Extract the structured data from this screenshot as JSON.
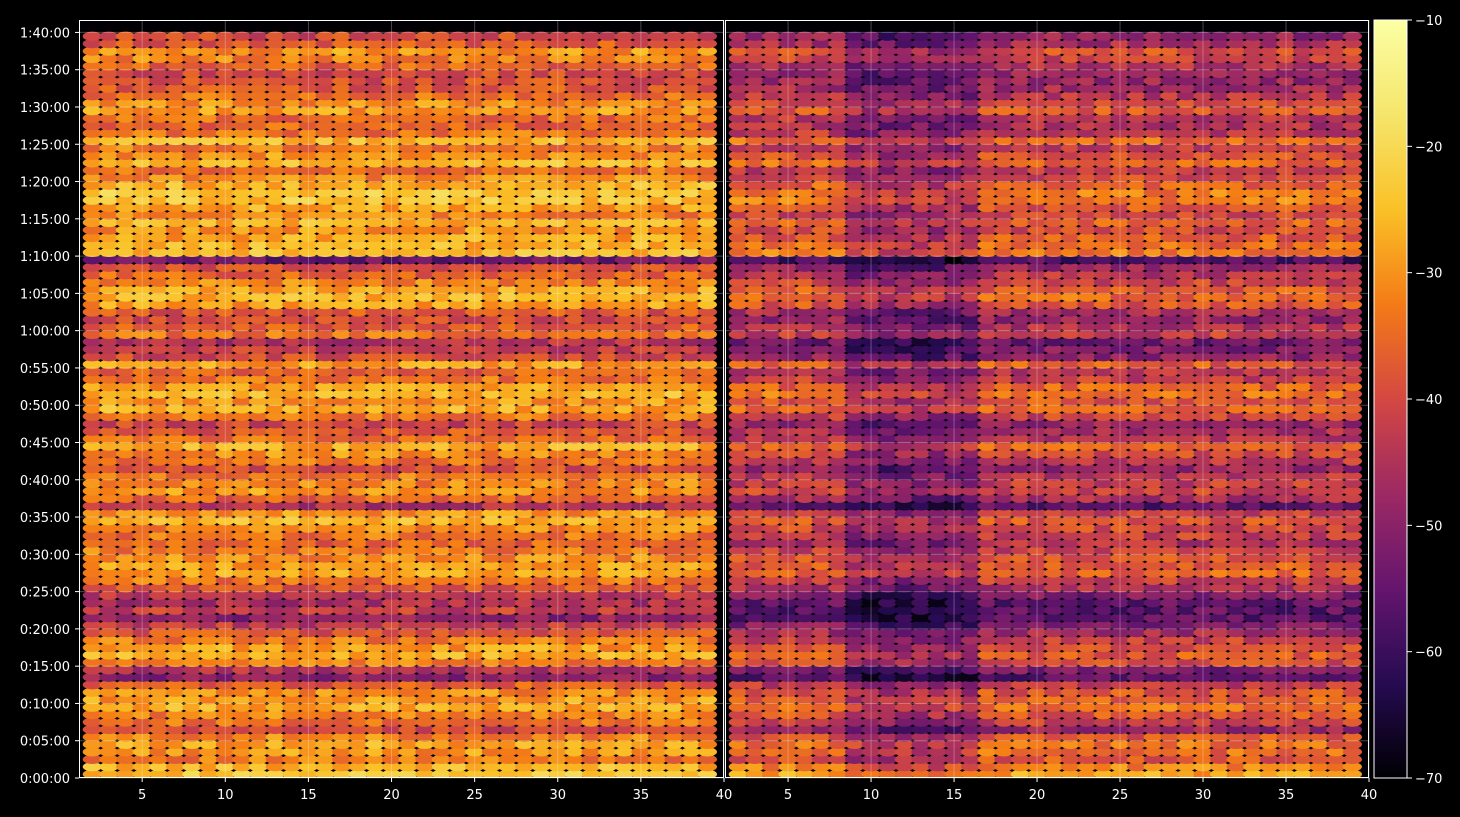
{
  "chart_data": {
    "type": "heatmap",
    "title": "",
    "xlabel": "",
    "ylabel": "",
    "grid": true,
    "ylim_seconds": [
      0,
      6100
    ],
    "y_ticks": [
      {
        "value": 0,
        "label": "0:00:00"
      },
      {
        "value": 300,
        "label": "0:05:00"
      },
      {
        "value": 600,
        "label": "0:10:00"
      },
      {
        "value": 900,
        "label": "0:15:00"
      },
      {
        "value": 1200,
        "label": "0:20:00"
      },
      {
        "value": 1500,
        "label": "0:25:00"
      },
      {
        "value": 1800,
        "label": "0:30:00"
      },
      {
        "value": 2100,
        "label": "0:35:00"
      },
      {
        "value": 2400,
        "label": "0:40:00"
      },
      {
        "value": 2700,
        "label": "0:45:00"
      },
      {
        "value": 3000,
        "label": "0:50:00"
      },
      {
        "value": 3300,
        "label": "0:55:00"
      },
      {
        "value": 3600,
        "label": "1:00:00"
      },
      {
        "value": 3900,
        "label": "1:05:00"
      },
      {
        "value": 4200,
        "label": "1:10:00"
      },
      {
        "value": 4500,
        "label": "1:15:00"
      },
      {
        "value": 4800,
        "label": "1:20:00"
      },
      {
        "value": 5100,
        "label": "1:25:00"
      },
      {
        "value": 5400,
        "label": "1:30:00"
      },
      {
        "value": 5700,
        "label": "1:35:00"
      },
      {
        "value": 6000,
        "label": "1:40:00"
      }
    ],
    "panels": [
      {
        "name": "left",
        "xlim": [
          1.2,
          40
        ],
        "x_ticks": [
          {
            "value": 5,
            "label": "5"
          },
          {
            "value": 10,
            "label": "10"
          },
          {
            "value": 15,
            "label": "15"
          },
          {
            "value": 20,
            "label": "20"
          },
          {
            "value": 25,
            "label": "25"
          },
          {
            "value": 30,
            "label": "30"
          },
          {
            "value": 35,
            "label": "35"
          },
          {
            "value": 40,
            "label": "40"
          }
        ]
      },
      {
        "name": "right",
        "xlim": [
          1.2,
          40
        ],
        "x_ticks": [
          {
            "value": 5,
            "label": "5"
          },
          {
            "value": 10,
            "label": "10"
          },
          {
            "value": 15,
            "label": "15"
          },
          {
            "value": 20,
            "label": "20"
          },
          {
            "value": 25,
            "label": "25"
          },
          {
            "value": 30,
            "label": "30"
          },
          {
            "value": 35,
            "label": "35"
          },
          {
            "value": 40,
            "label": "40"
          }
        ]
      }
    ],
    "colorbar": {
      "colormap": "inferno",
      "range": [
        -70,
        -10
      ],
      "ticks": [
        {
          "value": -10,
          "label": "−10"
        },
        {
          "value": -20,
          "label": "−20"
        },
        {
          "value": -30,
          "label": "−30"
        },
        {
          "value": -40,
          "label": "−40"
        },
        {
          "value": -50,
          "label": "−50"
        },
        {
          "value": -60,
          "label": "−60"
        },
        {
          "value": -70,
          "label": "−70"
        }
      ]
    },
    "grid_spec": {
      "x_bins": [
        2,
        39,
        1
      ],
      "time_bins_seconds": [
        30,
        6030,
        60
      ]
    },
    "row_level_db": {
      "left": [
        -24,
        -26,
        -33,
        -30,
        -28,
        -32,
        -40,
        -34,
        -32,
        -27,
        -29,
        -31,
        -37,
        -50,
        -45,
        -33,
        -27,
        -29,
        -33,
        -38,
        -43,
        -50,
        -42,
        -46,
        -44,
        -38,
        -34,
        -28,
        -29,
        -31,
        -33,
        -36,
        -34,
        -31,
        -26,
        -30,
        -45,
        -36,
        -30,
        -32,
        -33,
        -40,
        -34,
        -31,
        -27,
        -35,
        -38,
        -41,
        -33,
        -27,
        -30,
        -26,
        -29,
        -34,
        -36,
        -29,
        -40,
        -42,
        -45,
        -34,
        -37,
        -40,
        -38,
        -29,
        -26,
        -28,
        -32,
        -36,
        -40,
        -54,
        -25,
        -26,
        -28,
        -30,
        -26,
        -32,
        -28,
        -24,
        -23,
        -26,
        -31,
        -34,
        -25,
        -30,
        -33,
        -26,
        -34,
        -36,
        -35,
        -29,
        -31,
        -35,
        -38,
        -39,
        -40,
        -36,
        -32,
        -30,
        -38,
        -40
      ],
      "right": [
        -28,
        -32,
        -38,
        -35,
        -34,
        -38,
        -48,
        -42,
        -38,
        -34,
        -36,
        -38,
        -43,
        -56,
        -52,
        -40,
        -37,
        -39,
        -42,
        -47,
        -51,
        -56,
        -56,
        -56,
        -52,
        -46,
        -42,
        -36,
        -37,
        -39,
        -42,
        -45,
        -42,
        -40,
        -38,
        -42,
        -56,
        -46,
        -41,
        -42,
        -44,
        -49,
        -43,
        -40,
        -36,
        -44,
        -46,
        -49,
        -41,
        -36,
        -38,
        -34,
        -36,
        -42,
        -44,
        -37,
        -49,
        -51,
        -53,
        -42,
        -45,
        -49,
        -46,
        -38,
        -35,
        -37,
        -41,
        -44,
        -48,
        -58,
        -33,
        -35,
        -37,
        -40,
        -36,
        -41,
        -38,
        -33,
        -33,
        -36,
        -40,
        -43,
        -35,
        -39,
        -42,
        -35,
        -43,
        -45,
        -44,
        -38,
        -40,
        -44,
        -47,
        -48,
        -49,
        -45,
        -41,
        -39,
        -46,
        -49
      ]
    }
  }
}
